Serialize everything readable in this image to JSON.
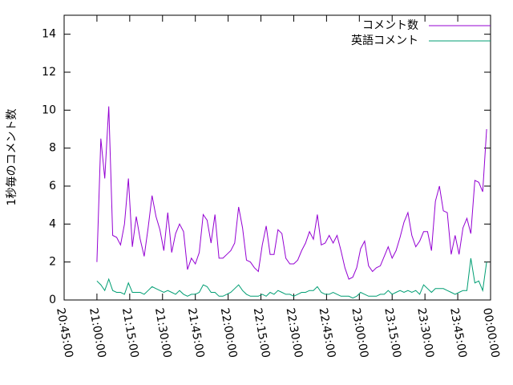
{
  "chart_data": {
    "type": "line",
    "y_label": "1秒毎のコメント数",
    "x": [
      "21:00:00",
      "21:01:48",
      "21:03:36",
      "21:05:24",
      "21:07:12",
      "21:09:00",
      "21:10:48",
      "21:12:36",
      "21:14:24",
      "21:16:12",
      "21:18:00",
      "21:19:48",
      "21:21:36",
      "21:23:24",
      "21:25:12",
      "21:27:00",
      "21:28:48",
      "21:30:36",
      "21:32:24",
      "21:34:12",
      "21:36:00",
      "21:37:48",
      "21:39:36",
      "21:41:24",
      "21:43:12",
      "21:45:00",
      "21:46:48",
      "21:48:36",
      "21:50:24",
      "21:52:12",
      "21:54:00",
      "21:55:48",
      "21:57:36",
      "21:59:24",
      "22:01:12",
      "22:03:00",
      "22:04:48",
      "22:06:36",
      "22:08:24",
      "22:10:12",
      "22:12:00",
      "22:13:48",
      "22:15:36",
      "22:17:24",
      "22:19:12",
      "22:21:00",
      "22:22:48",
      "22:24:36",
      "22:26:24",
      "22:28:12",
      "22:30:00",
      "22:31:48",
      "22:33:36",
      "22:35:24",
      "22:37:12",
      "22:39:00",
      "22:40:48",
      "22:42:36",
      "22:44:24",
      "22:46:12",
      "22:48:00",
      "22:49:48",
      "22:51:36",
      "22:53:24",
      "22:55:12",
      "22:57:00",
      "22:58:48",
      "23:00:36",
      "23:02:24",
      "23:04:12",
      "23:06:00",
      "23:07:48",
      "23:09:36",
      "23:11:24",
      "23:13:12",
      "23:15:00",
      "23:16:48",
      "23:18:36",
      "23:20:24",
      "23:22:12",
      "23:24:00",
      "23:25:48",
      "23:27:36",
      "23:29:24",
      "23:31:12",
      "23:33:00",
      "23:34:48",
      "23:36:36",
      "23:38:24",
      "23:40:12",
      "23:42:00",
      "23:43:48",
      "23:45:36",
      "23:47:24",
      "23:49:12",
      "23:51:00",
      "23:52:48",
      "23:54:36",
      "23:56:24",
      "23:58:12"
    ],
    "series": [
      {
        "name": "コメント数",
        "color": "#9400d3",
        "values": [
          2.0,
          8.5,
          6.4,
          10.2,
          3.4,
          3.3,
          2.9,
          4.0,
          6.4,
          2.8,
          4.4,
          3.2,
          2.3,
          3.8,
          5.5,
          4.4,
          3.7,
          2.6,
          4.6,
          2.5,
          3.5,
          4.0,
          3.6,
          1.6,
          2.2,
          1.9,
          2.5,
          4.5,
          4.2,
          3.0,
          4.5,
          2.2,
          2.2,
          2.4,
          2.6,
          3.0,
          4.9,
          3.8,
          2.1,
          2.0,
          1.7,
          1.5,
          2.9,
          3.9,
          2.4,
          2.4,
          3.7,
          3.5,
          2.2,
          1.9,
          1.9,
          2.1,
          2.6,
          3.0,
          3.6,
          3.2,
          4.5,
          2.9,
          3.0,
          3.4,
          3.0,
          3.4,
          2.6,
          1.7,
          1.1,
          1.2,
          1.7,
          2.7,
          3.1,
          1.8,
          1.5,
          1.7,
          1.8,
          2.3,
          2.8,
          2.2,
          2.6,
          3.3,
          4.1,
          4.6,
          3.4,
          2.8,
          3.1,
          3.6,
          3.6,
          2.6,
          5.2,
          6.0,
          4.7,
          4.6,
          2.4,
          3.4,
          2.4,
          3.8,
          4.3,
          3.5,
          6.3,
          6.2,
          5.7,
          9.0
        ]
      },
      {
        "name": "英語コメント",
        "color": "#009e73",
        "values": [
          1.0,
          0.8,
          0.5,
          1.1,
          0.5,
          0.4,
          0.4,
          0.3,
          0.9,
          0.4,
          0.4,
          0.4,
          0.3,
          0.5,
          0.7,
          0.6,
          0.5,
          0.4,
          0.5,
          0.4,
          0.3,
          0.5,
          0.3,
          0.2,
          0.3,
          0.3,
          0.4,
          0.8,
          0.7,
          0.4,
          0.4,
          0.2,
          0.2,
          0.3,
          0.4,
          0.6,
          0.8,
          0.5,
          0.3,
          0.2,
          0.2,
          0.2,
          0.3,
          0.2,
          0.4,
          0.3,
          0.5,
          0.4,
          0.3,
          0.3,
          0.2,
          0.3,
          0.4,
          0.4,
          0.5,
          0.5,
          0.7,
          0.4,
          0.3,
          0.3,
          0.4,
          0.3,
          0.2,
          0.2,
          0.2,
          0.1,
          0.2,
          0.4,
          0.3,
          0.2,
          0.2,
          0.2,
          0.3,
          0.3,
          0.5,
          0.3,
          0.4,
          0.5,
          0.4,
          0.5,
          0.4,
          0.5,
          0.3,
          0.8,
          0.6,
          0.4,
          0.6,
          0.6,
          0.6,
          0.5,
          0.4,
          0.3,
          0.4,
          0.5,
          0.5,
          2.2,
          0.9,
          1.0,
          0.5,
          2.0
        ]
      }
    ],
    "xlim": [
      "20:45:00",
      "00:00:00"
    ],
    "xticks": [
      "20:45:00",
      "21:00:00",
      "21:15:00",
      "21:30:00",
      "21:45:00",
      "22:00:00",
      "22:15:00",
      "22:30:00",
      "22:45:00",
      "23:00:00",
      "23:15:00",
      "23:30:00",
      "23:45:00",
      "00:00:00"
    ],
    "ylim": [
      0,
      15
    ],
    "yticks": [
      0,
      2,
      4,
      6,
      8,
      10,
      12,
      14
    ],
    "legend": "top-right"
  }
}
